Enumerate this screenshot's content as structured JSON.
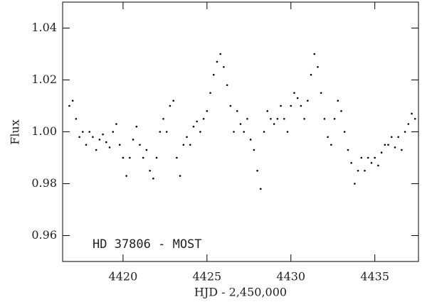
{
  "chart_data": {
    "type": "scatter",
    "xlabel": "HJD - 2,450,000",
    "ylabel": "Flux",
    "annotation": "HD 37806 - MOST",
    "color": "#000000",
    "xlim": [
      4416.4,
      4437.6
    ],
    "xticks": [
      4420,
      4425,
      4430,
      4435
    ],
    "ylim": [
      0.95,
      1.05
    ],
    "yticks": [
      0.96,
      0.98,
      {
        "value": 1,
        "label": "1.00"
      },
      1.02,
      1.04
    ],
    "x": [
      4416.8,
      4417,
      4417.2,
      4417.4,
      4417.6,
      4417.8,
      4418,
      4418.2,
      4418.4,
      4418.6,
      4418.8,
      4419,
      4419.2,
      4419.4,
      4419.6,
      4419.8,
      4420,
      4420.2,
      4420.4,
      4420.6,
      4420.8,
      4421,
      4421.2,
      4421.4,
      4421.6,
      4421.8,
      4422,
      4422.2,
      4422.4,
      4422.6,
      4422.8,
      4423,
      4423.2,
      4423.4,
      4423.6,
      4423.8,
      4424,
      4424.2,
      4424.4,
      4424.6,
      4424.8,
      4425,
      4425.2,
      4425.4,
      4425.6,
      4425.8,
      4426,
      4426.2,
      4426.4,
      4426.6,
      4426.8,
      4427,
      4427.2,
      4427.4,
      4427.6,
      4427.8,
      4428,
      4428.2,
      4428.4,
      4428.6,
      4428.8,
      4429,
      4429.2,
      4429.4,
      4429.6,
      4429.8,
      4430,
      4430.2,
      4430.4,
      4430.6,
      4430.8,
      4431,
      4431.2,
      4431.4,
      4431.6,
      4431.8,
      4432,
      4432.2,
      4432.4,
      4432.6,
      4432.8,
      4433,
      4433.2,
      4433.4,
      4433.6,
      4433.8,
      4434,
      4434.2,
      4434.4,
      4434.6,
      4434.8,
      4435,
      4435.2,
      4435.4,
      4435.6,
      4435.8,
      4436,
      4436.2,
      4436.4,
      4436.6,
      4436.8,
      4437,
      4437.2,
      4437.4
    ],
    "y": [
      1.01,
      1.012,
      1.005,
      0.998,
      1.0,
      0.995,
      1.0,
      0.998,
      0.993,
      0.997,
      0.999,
      0.996,
      0.994,
      1.0,
      1.003,
      0.995,
      0.99,
      0.983,
      0.99,
      0.997,
      1.002,
      0.995,
      0.99,
      0.993,
      0.985,
      0.982,
      0.99,
      1.0,
      1.005,
      1.0,
      1.01,
      1.012,
      0.99,
      0.983,
      0.995,
      0.998,
      0.995,
      1.002,
      1.004,
      1.0,
      1.005,
      1.008,
      1.015,
      1.022,
      1.027,
      1.03,
      1.025,
      1.018,
      1.01,
      1.0,
      1.008,
      1.003,
      1.0,
      1.005,
      0.997,
      0.993,
      0.985,
      0.978,
      1.0,
      1.008,
      1.005,
      1.003,
      1.005,
      1.01,
      1.005,
      1.0,
      1.01,
      1.015,
      1.013,
      1.01,
      1.005,
      1.012,
      1.022,
      1.03,
      1.025,
      1.015,
      1.005,
      0.998,
      0.995,
      1.005,
      1.012,
      1.008,
      1.0,
      0.993,
      0.988,
      0.98,
      0.985,
      0.99,
      0.985,
      0.99,
      0.988,
      0.99,
      0.987,
      0.992,
      0.995,
      0.995,
      0.998,
      0.994,
      0.998,
      0.993,
      1.0,
      1.003,
      1.007,
      1.005
    ]
  }
}
